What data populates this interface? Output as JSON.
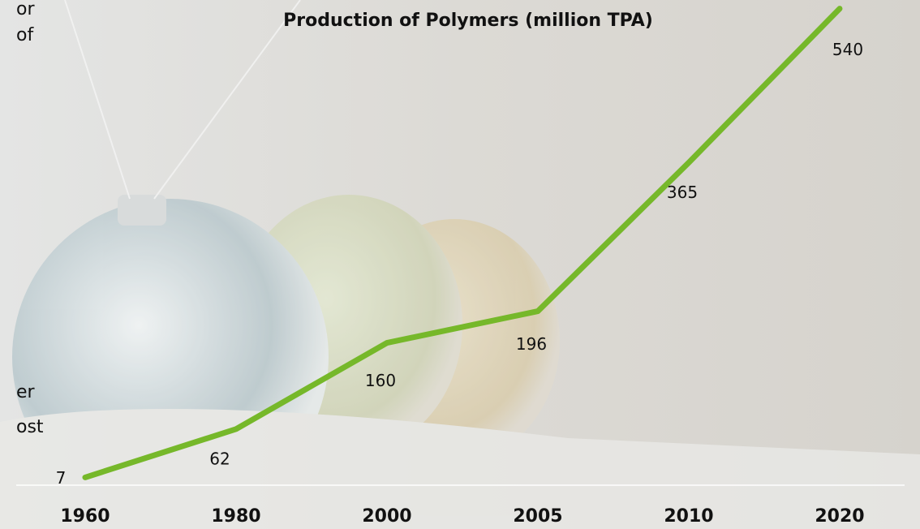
{
  "side_text": [
    "or",
    "of",
    "er",
    "ost"
  ],
  "chart_data": {
    "type": "line",
    "title": "Production of Polymers (million TPA)",
    "categories": [
      "1960",
      "1980",
      "2000",
      "2005",
      "2010",
      "2020"
    ],
    "series": [
      {
        "color": "#76b82a",
        "values": [
          7,
          62,
          160,
          196,
          365,
          540
        ]
      }
    ]
  }
}
